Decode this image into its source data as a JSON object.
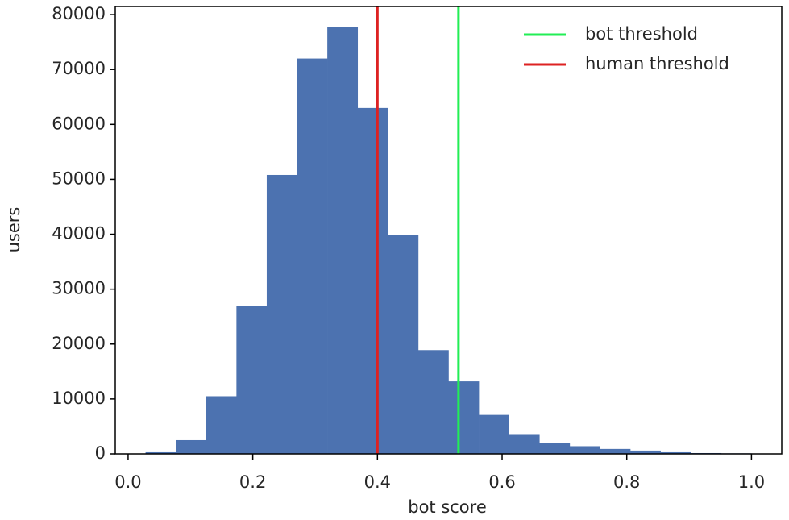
{
  "chart_data": {
    "type": "histogram",
    "xlabel": "bot score",
    "ylabel": "users",
    "bins": [
      0.028,
      0.0766,
      0.1252,
      0.1738,
      0.2224,
      0.271,
      0.3196,
      0.3682,
      0.4168,
      0.4654,
      0.514,
      0.5626,
      0.6112,
      0.6598,
      0.7084,
      0.757,
      0.8056,
      0.8542,
      0.9028,
      0.9514,
      1.0
    ],
    "values": [
      300,
      2500,
      10500,
      27000,
      50800,
      72000,
      77700,
      63000,
      39800,
      18900,
      13200,
      7100,
      3600,
      2000,
      1400,
      900,
      600,
      300,
      150,
      100
    ],
    "color": "#4c72b0",
    "vlines": [
      {
        "name": "bot threshold",
        "color": "#22ee55",
        "x": 0.53
      },
      {
        "name": "human threshold",
        "color": "#dd2222",
        "x": 0.4
      }
    ],
    "legend": "upper right",
    "xlim": [
      -0.0206,
      1.0486
    ],
    "xticks": [
      {
        "value": 0,
        "label": "0.0"
      },
      0.2,
      0.4,
      0.6,
      0.8,
      {
        "value": 1,
        "label": "1.0"
      }
    ],
    "ylim": [
      0,
      81480
    ],
    "yticks": [
      0,
      10000,
      20000,
      30000,
      40000,
      50000,
      60000,
      70000,
      80000
    ]
  }
}
